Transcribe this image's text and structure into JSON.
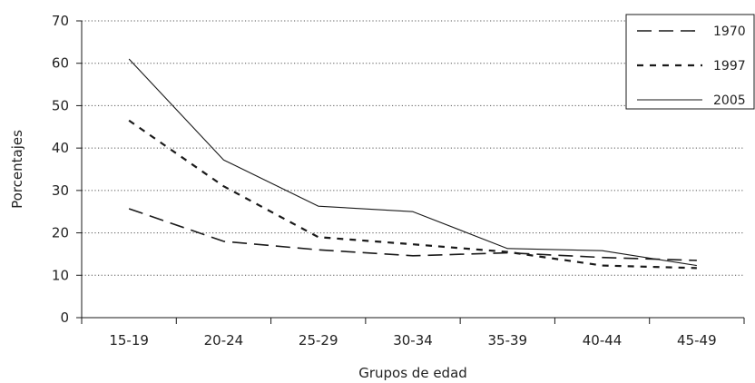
{
  "chart_data": {
    "type": "line",
    "categories": [
      "15-19",
      "20-24",
      "25-29",
      "30-34",
      "35-39",
      "40-44",
      "45-49"
    ],
    "series": [
      {
        "name": "1970",
        "values": [
          25.7,
          18.0,
          16.0,
          14.6,
          15.3,
          14.2,
          13.5
        ],
        "dash": "long-dash"
      },
      {
        "name": "1997",
        "values": [
          46.5,
          31.0,
          19.0,
          17.3,
          15.5,
          12.3,
          11.7
        ],
        "dash": "short-dash"
      },
      {
        "name": "2005",
        "values": [
          61.0,
          37.2,
          26.3,
          25.0,
          16.3,
          15.8,
          12.3
        ],
        "dash": "solid"
      }
    ],
    "yticks": [
      "0",
      "10",
      "20",
      "30",
      "40",
      "50",
      "60",
      "70"
    ],
    "ylim": [
      0,
      70
    ],
    "xlabel": "Grupos de edad",
    "ylabel": "Porcentajes",
    "grid": true,
    "grid_style": "dotted",
    "legend_position": "top-right",
    "line_color": "#1a1a1a"
  }
}
